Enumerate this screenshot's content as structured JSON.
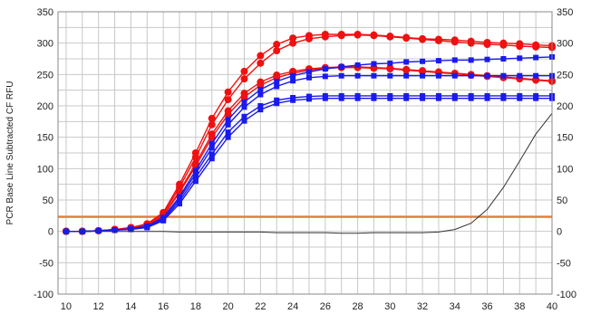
{
  "chart_data": {
    "type": "line",
    "title": "",
    "xlabel": "",
    "ylabel": "PCR Base Line Subtracted CF RFU",
    "xlim": [
      9.5,
      40
    ],
    "ylim": [
      -100,
      350
    ],
    "x_ticks": [
      "10",
      "12",
      "14",
      "16",
      "18",
      "20",
      "22",
      "24",
      "26",
      "28",
      "30",
      "32",
      "34",
      "36",
      "38",
      "40"
    ],
    "x_tick_values": [
      10,
      12,
      14,
      16,
      18,
      20,
      22,
      24,
      26,
      28,
      30,
      32,
      34,
      36,
      38,
      40
    ],
    "y_ticks": [
      "350",
      "300",
      "250",
      "200",
      "150",
      "100",
      "50",
      "0",
      "-50",
      "-100"
    ],
    "y_tick_values": [
      350,
      300,
      250,
      200,
      150,
      100,
      50,
      0,
      -50,
      -100
    ],
    "grid": true,
    "right_axis": true,
    "threshold": {
      "value": 23,
      "color": "#e8782a"
    },
    "x": [
      10,
      11,
      12,
      13,
      14,
      15,
      16,
      17,
      18,
      19,
      20,
      21,
      22,
      23,
      24,
      25,
      26,
      27,
      28,
      29,
      30,
      31,
      32,
      33,
      34,
      35,
      36,
      37,
      38,
      39,
      40
    ],
    "series": [
      {
        "marker": "circle",
        "color": "#ee1111",
        "values": [
          0,
          0,
          1,
          3,
          6,
          12,
          30,
          75,
          125,
          180,
          222,
          255,
          280,
          298,
          308,
          312,
          314,
          314,
          314,
          313,
          311,
          309,
          307,
          306,
          305,
          303,
          301,
          300,
          299,
          297,
          296
        ]
      },
      {
        "marker": "circle",
        "color": "#ee1111",
        "values": [
          0,
          0,
          1,
          3,
          6,
          11,
          28,
          70,
          118,
          170,
          210,
          243,
          268,
          288,
          300,
          307,
          310,
          312,
          313,
          312,
          310,
          308,
          306,
          304,
          302,
          300,
          298,
          297,
          295,
          294,
          293
        ]
      },
      {
        "marker": "circle",
        "color": "#ee1111",
        "values": [
          0,
          0,
          1,
          3,
          5,
          10,
          25,
          64,
          108,
          155,
          192,
          220,
          238,
          249,
          255,
          259,
          261,
          262,
          262,
          261,
          260,
          258,
          256,
          254,
          252,
          250,
          248,
          246,
          244,
          242,
          240
        ]
      },
      {
        "marker": "circle",
        "color": "#ee1111",
        "values": [
          0,
          0,
          1,
          3,
          5,
          10,
          24,
          62,
          104,
          150,
          186,
          214,
          233,
          245,
          252,
          257,
          260,
          261,
          261,
          260,
          259,
          257,
          255,
          253,
          251,
          249,
          247,
          245,
          243,
          241,
          239
        ]
      },
      {
        "marker": "square",
        "color": "#1a1aee",
        "values": [
          0,
          0,
          1,
          2,
          4,
          8,
          22,
          55,
          97,
          140,
          178,
          206,
          226,
          239,
          248,
          254,
          259,
          262,
          265,
          267,
          268,
          270,
          271,
          272,
          273,
          273,
          274,
          275,
          276,
          277,
          278
        ]
      },
      {
        "marker": "square",
        "color": "#1a1aee",
        "values": [
          0,
          0,
          1,
          2,
          4,
          8,
          21,
          52,
          92,
          133,
          170,
          198,
          218,
          231,
          240,
          245,
          247,
          248,
          248,
          248,
          248,
          248,
          248,
          248,
          248,
          248,
          248,
          248,
          248,
          248,
          248
        ]
      },
      {
        "marker": "square",
        "color": "#1a1aee",
        "values": [
          0,
          0,
          1,
          2,
          4,
          7,
          19,
          48,
          86,
          123,
          158,
          183,
          200,
          209,
          213,
          215,
          216,
          216,
          216,
          216,
          216,
          216,
          216,
          216,
          216,
          216,
          216,
          216,
          216,
          216,
          216
        ]
      },
      {
        "marker": "square",
        "color": "#1a1aee",
        "values": [
          0,
          0,
          1,
          2,
          3,
          6,
          17,
          44,
          80,
          116,
          150,
          176,
          194,
          204,
          209,
          211,
          212,
          212,
          212,
          212,
          212,
          212,
          212,
          212,
          212,
          212,
          212,
          212,
          212,
          212,
          212
        ]
      },
      {
        "marker": "none",
        "color": "#333333",
        "values": [
          0,
          0,
          0,
          0,
          0,
          0,
          0,
          -1,
          -1,
          -1,
          -1,
          -1,
          -1,
          -2,
          -2,
          -2,
          -2,
          -3,
          -3,
          -2,
          -2,
          -2,
          -2,
          -1,
          3,
          13,
          35,
          70,
          112,
          155,
          188
        ]
      }
    ]
  }
}
